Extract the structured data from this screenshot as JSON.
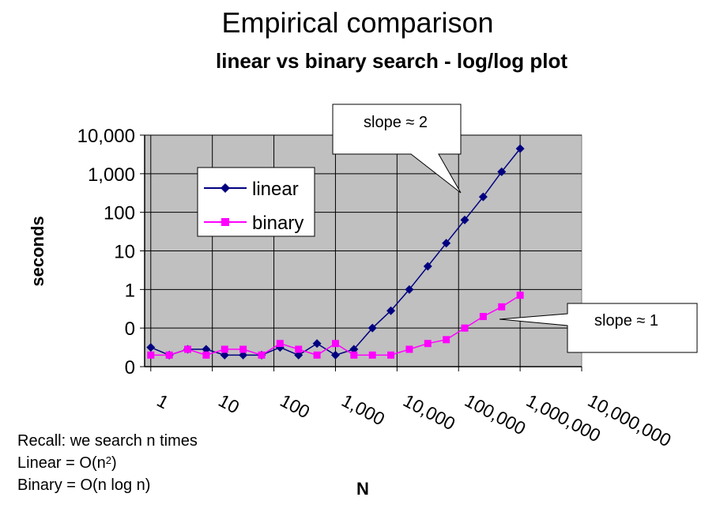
{
  "page": {
    "title": "Empirical comparison",
    "subtitle": "linear vs binary search - log/log plot"
  },
  "notes": {
    "line1": "Recall: we search n times",
    "line2_prefix": "Linear = O(n",
    "line2_sup": "2",
    "line2_suffix": ")",
    "line3": "Binary = O(n log n)"
  },
  "callouts": {
    "top": "slope ≈ 2",
    "right": "slope ≈ 1"
  },
  "chart_data": {
    "type": "line",
    "title": "linear vs binary search - log/log plot",
    "xlabel": "N",
    "ylabel": "seconds",
    "x_scale": "log10",
    "y_scale": "log10",
    "xlim_log10": [
      -0.1,
      7
    ],
    "ylim_log10": [
      -2,
      4
    ],
    "x_tick_log10": [
      0,
      1,
      2,
      3,
      4,
      5,
      6,
      7
    ],
    "x_tick_labels": [
      "1",
      "10",
      "100",
      "1,000",
      "10,000",
      "100,000",
      "1,000,000",
      "10,000,000"
    ],
    "y_tick_log10": [
      -2,
      -1,
      0,
      1,
      2,
      3,
      4
    ],
    "y_tick_labels": [
      "0",
      "0",
      "1",
      "10",
      "100",
      "1,000",
      "10,000"
    ],
    "grid": true,
    "plot_background": "#c0c0c0",
    "legend_position": "upper-left",
    "series": [
      {
        "name": "linear",
        "color": "#000080",
        "marker": "diamond",
        "x_log10": [
          0.0,
          0.3,
          0.6,
          0.9,
          1.2,
          1.5,
          1.8,
          2.1,
          2.4,
          2.7,
          3.0,
          3.3,
          3.6,
          3.9,
          4.2,
          4.5,
          4.8,
          5.1,
          5.4,
          5.7,
          6.0
        ],
        "y_log10": [
          -1.5,
          -1.7,
          -1.55,
          -1.55,
          -1.7,
          -1.7,
          -1.7,
          -1.5,
          -1.7,
          -1.4,
          -1.7,
          -1.55,
          -1.0,
          -0.55,
          0.0,
          0.6,
          1.2,
          1.8,
          2.4,
          3.05,
          3.65
        ]
      },
      {
        "name": "binary",
        "color": "#ff00ff",
        "marker": "square",
        "x_log10": [
          0.0,
          0.3,
          0.6,
          0.9,
          1.2,
          1.5,
          1.8,
          2.1,
          2.4,
          2.7,
          3.0,
          3.3,
          3.6,
          3.9,
          4.2,
          4.5,
          4.8,
          5.1,
          5.4,
          5.7,
          6.0
        ],
        "y_log10": [
          -1.7,
          -1.7,
          -1.55,
          -1.7,
          -1.55,
          -1.55,
          -1.7,
          -1.4,
          -1.55,
          -1.7,
          -1.4,
          -1.7,
          -1.7,
          -1.7,
          -1.55,
          -1.4,
          -1.3,
          -1.0,
          -0.7,
          -0.45,
          -0.15
        ]
      }
    ]
  }
}
